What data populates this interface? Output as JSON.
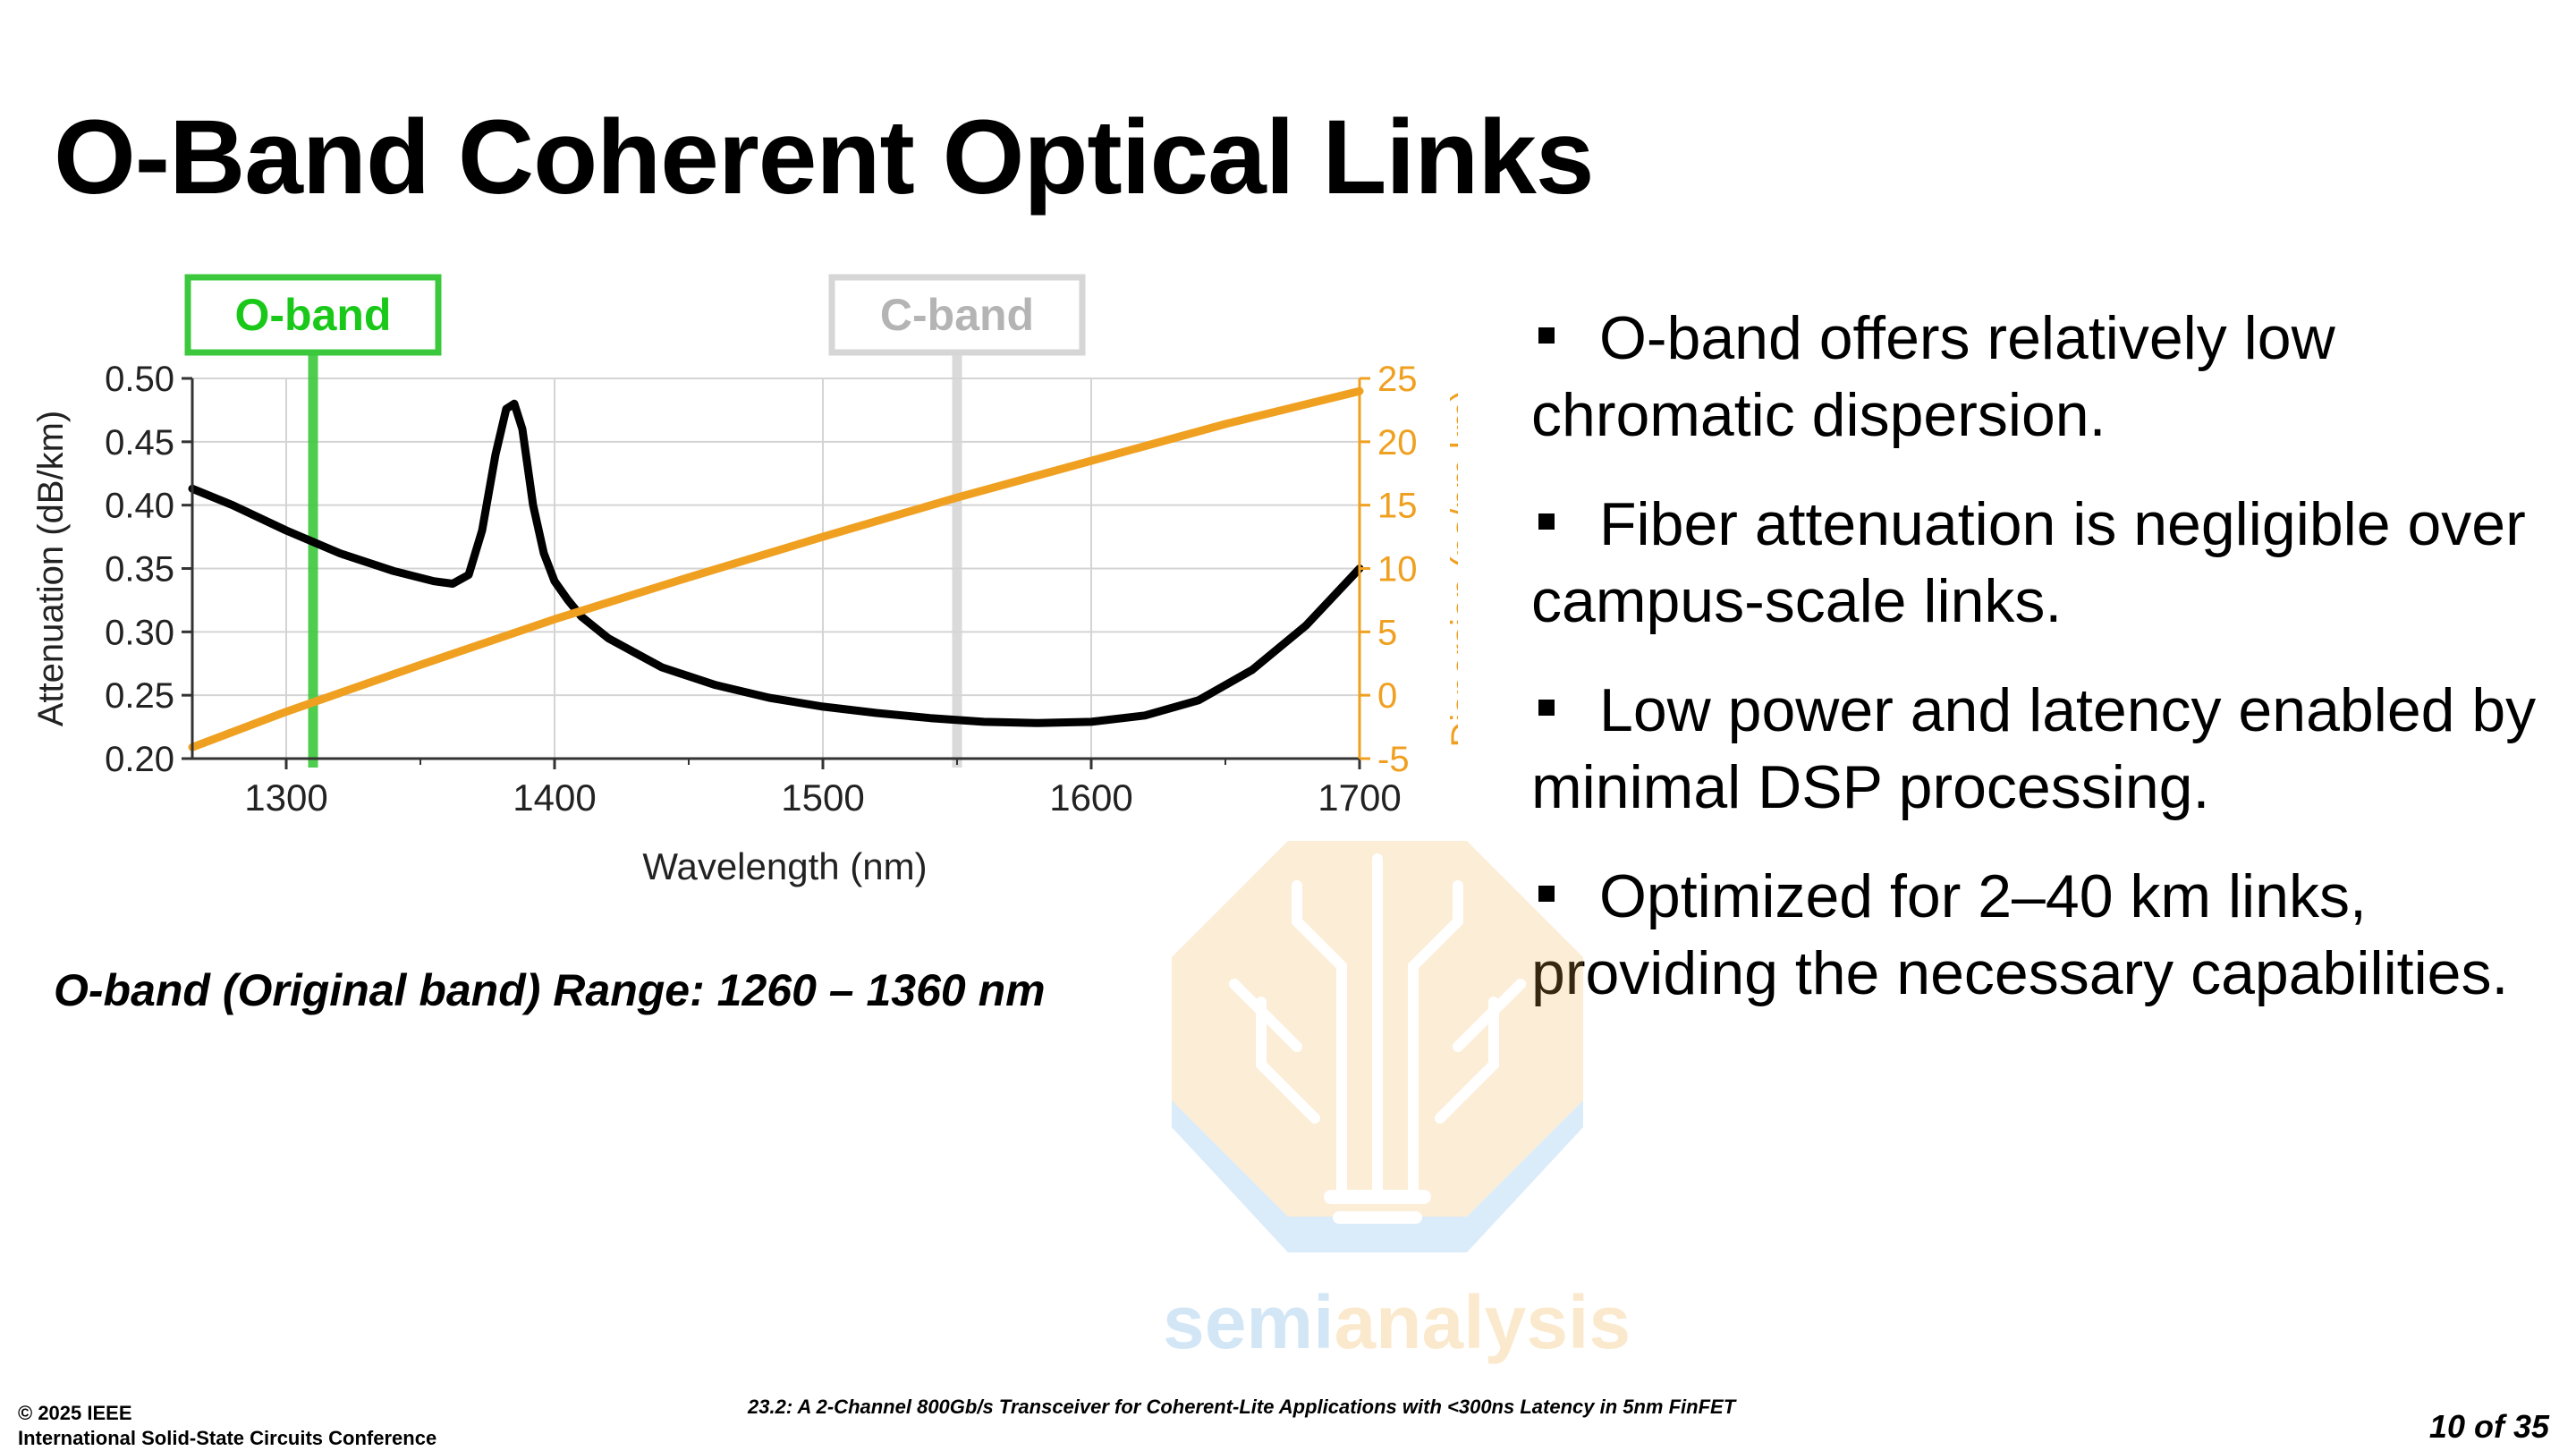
{
  "slide": {
    "title": "O-Band Coherent Optical Links",
    "caption": "O-band (Original band) Range: 1260 – 1360 nm",
    "bullets": [
      "O-band offers relatively low chromatic dispersion.",
      "Fiber attenuation is negligible over campus-scale links.",
      "Low power and latency enabled by minimal DSP processing.",
      "Optimized for 2–40 km links, providing the necessary capabilities."
    ]
  },
  "footer": {
    "copyright": "© 2025 IEEE",
    "conference": "International Solid-State Circuits Conference",
    "paper": "23.2: A 2-Channel 800Gb/s Transceiver for Coherent-Lite Applications with <300ns Latency in 5nm FinFET",
    "page": "10 of 35"
  },
  "watermark": {
    "text_a": "semi",
    "text_b": "analysis"
  },
  "chart_data": {
    "type": "line",
    "xlabel": "Wavelength (nm)",
    "ylabel": "Attenuation (dB/km)",
    "y2label": "Dispersion (ps/nm.km)",
    "xlim": [
      1265,
      1700
    ],
    "ylim": [
      0.2,
      0.5
    ],
    "y2lim": [
      -5,
      25
    ],
    "x_ticks": [
      1300,
      1400,
      1500,
      1600,
      1700
    ],
    "y_ticks": [
      "0.20",
      "0.25",
      "0.30",
      "0.35",
      "0.40",
      "0.45",
      "0.50"
    ],
    "y2_ticks": [
      "-5",
      "0",
      "5",
      "10",
      "15",
      "20",
      "25"
    ],
    "grid": true,
    "series": [
      {
        "axis": "left",
        "color": "#000000",
        "x": [
          1265,
          1280,
          1300,
          1320,
          1340,
          1355,
          1362,
          1368,
          1373,
          1378,
          1382,
          1385,
          1388,
          1392,
          1396,
          1400,
          1405,
          1410,
          1420,
          1440,
          1460,
          1480,
          1500,
          1520,
          1540,
          1560,
          1580,
          1600,
          1620,
          1640,
          1660,
          1680,
          1700
        ],
        "y": [
          0.413,
          0.4,
          0.38,
          0.362,
          0.348,
          0.34,
          0.338,
          0.345,
          0.38,
          0.44,
          0.476,
          0.48,
          0.46,
          0.4,
          0.362,
          0.34,
          0.325,
          0.312,
          0.295,
          0.272,
          0.258,
          0.248,
          0.241,
          0.236,
          0.232,
          0.229,
          0.228,
          0.229,
          0.234,
          0.246,
          0.27,
          0.305,
          0.35
        ]
      },
      {
        "axis": "right",
        "color": "#f0a020",
        "x": [
          1265,
          1300,
          1350,
          1400,
          1450,
          1500,
          1550,
          1600,
          1650,
          1700
        ],
        "y": [
          -4.1,
          -1.3,
          2.4,
          6.0,
          9.3,
          12.5,
          15.6,
          18.5,
          21.4,
          24.0
        ]
      }
    ],
    "band_markers": [
      {
        "label": "O-band",
        "x": 1310,
        "color": "#3cc83c",
        "label_color": "#19c819"
      },
      {
        "label": "C-band",
        "x": 1550,
        "color": "#d6d6d6",
        "label_color": "#b4b4b4"
      }
    ]
  }
}
